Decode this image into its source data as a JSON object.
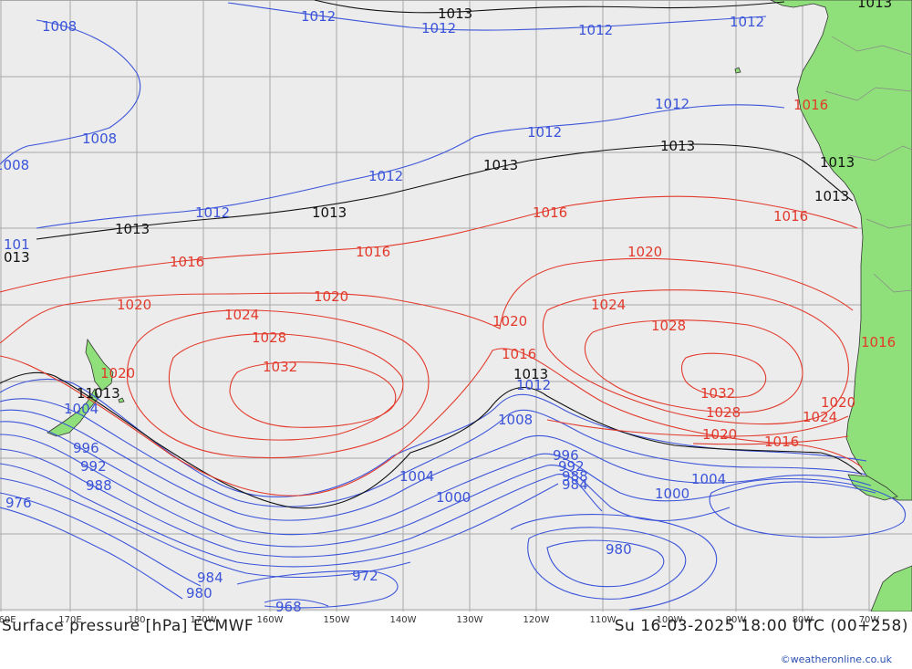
{
  "title": "Surface pressure [hPa] ECMWF",
  "valid_time": "Su 16-03-2025 18:00 UTC (00+258)",
  "credit": "©weatheronline.co.uk",
  "colors": {
    "ocean": "#ececec",
    "land": "#8fe07a",
    "grid": "#a9a9a9",
    "low_isobar": "#3b54d9",
    "high_isobar": "#e23a2c",
    "standard_isobar": "#111111"
  },
  "longitude_labels": [
    "60E",
    "170E",
    "180",
    "170W",
    "160W",
    "150W",
    "140W",
    "130W",
    "120W",
    "110W",
    "100W",
    "90W",
    "80W",
    "70W"
  ],
  "isobar_labels": [
    {
      "text": "1008",
      "series": "low"
    },
    {
      "text": "1012",
      "series": "low"
    },
    {
      "text": "1013",
      "series": "standard"
    },
    {
      "text": "1012",
      "series": "low"
    },
    {
      "text": "1012",
      "series": "low"
    },
    {
      "text": "1012",
      "series": "low"
    },
    {
      "text": "1008",
      "series": "low"
    },
    {
      "text": "1008",
      "series": "low"
    },
    {
      "text": "1012",
      "series": "low"
    },
    {
      "text": "1012",
      "series": "low"
    },
    {
      "text": "1012",
      "series": "low"
    },
    {
      "text": "1013",
      "series": "standard"
    },
    {
      "text": "1013",
      "series": "standard"
    },
    {
      "text": "1013",
      "series": "standard"
    },
    {
      "text": "1013",
      "series": "standard"
    },
    {
      "text": "1013",
      "series": "standard"
    },
    {
      "text": "1013",
      "series": "standard"
    },
    {
      "text": "1016",
      "series": "high"
    },
    {
      "text": "1016",
      "series": "high"
    },
    {
      "text": "1016",
      "series": "high"
    },
    {
      "text": "1016",
      "series": "high"
    },
    {
      "text": "1020",
      "series": "high"
    },
    {
      "text": "1020",
      "series": "high"
    },
    {
      "text": "1020",
      "series": "high"
    },
    {
      "text": "1024",
      "series": "high"
    },
    {
      "text": "1024",
      "series": "high"
    },
    {
      "text": "1028",
      "series": "high"
    },
    {
      "text": "1028",
      "series": "high"
    },
    {
      "text": "1032",
      "series": "high"
    },
    {
      "text": "1032",
      "series": "high"
    },
    {
      "text": "1020",
      "series": "high"
    },
    {
      "text": "1020",
      "series": "high"
    },
    {
      "text": "1020",
      "series": "high"
    },
    {
      "text": "1016",
      "series": "high"
    },
    {
      "text": "1016",
      "series": "high"
    },
    {
      "text": "1016",
      "series": "high"
    },
    {
      "text": "1024",
      "series": "high"
    },
    {
      "text": "1028",
      "series": "high"
    },
    {
      "text": "1013",
      "series": "standard"
    },
    {
      "text": "11013",
      "series": "standard"
    },
    {
      "text": "1012",
      "series": "low"
    },
    {
      "text": "1008",
      "series": "low"
    },
    {
      "text": "1004",
      "series": "low"
    },
    {
      "text": "1004",
      "series": "low"
    },
    {
      "text": "1004",
      "series": "low"
    },
    {
      "text": "1000",
      "series": "low"
    },
    {
      "text": "1000",
      "series": "low"
    },
    {
      "text": "996",
      "series": "low"
    },
    {
      "text": "996",
      "series": "low"
    },
    {
      "text": "992",
      "series": "low"
    },
    {
      "text": "992",
      "series": "low"
    },
    {
      "text": "988",
      "series": "low"
    },
    {
      "text": "988",
      "series": "low"
    },
    {
      "text": "984",
      "series": "low"
    },
    {
      "text": "984",
      "series": "low"
    },
    {
      "text": "980",
      "series": "low"
    },
    {
      "text": "980",
      "series": "low"
    },
    {
      "text": "976",
      "series": "low"
    },
    {
      "text": "972",
      "series": "low"
    },
    {
      "text": "968",
      "series": "low"
    },
    {
      "text": "1016",
      "series": "high"
    },
    {
      "text": "1020",
      "series": "high"
    },
    {
      "text": "1013",
      "series": "standard"
    },
    {
      "text": "1012",
      "series": "low"
    },
    {
      "text": "101",
      "series": "low"
    },
    {
      "text": "013",
      "series": "standard"
    }
  ]
}
